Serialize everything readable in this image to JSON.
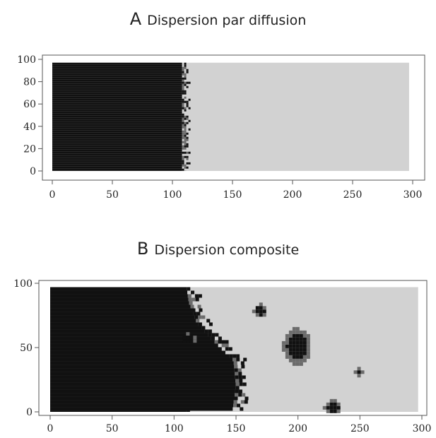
{
  "chart_data": [
    {
      "type": "heatmap",
      "panel_letter": "A",
      "title": "Dispersion par diffusion",
      "xlim": [
        0,
        300
      ],
      "ylim": [
        0,
        100
      ],
      "x_ticks": [
        "0",
        "50",
        "100",
        "150",
        "200",
        "250",
        "300"
      ],
      "y_ticks": [
        "0",
        "20",
        "40",
        "60",
        "80",
        "100"
      ],
      "x_tick_values": [
        0,
        50,
        100,
        150,
        200,
        250,
        300
      ],
      "y_tick_values": [
        0,
        20,
        40,
        60,
        80,
        100
      ],
      "legend": "none",
      "grid": false,
      "colors": {
        "occupied": "#111111",
        "front": "#6b6b6b",
        "empty": "#d2d2d2",
        "frame": "#555555"
      },
      "description_of_cells": {
        "grid_extent_x": [
          0,
          297
        ],
        "grid_extent_y": [
          0,
          97
        ],
        "dark_region_front_x": 108,
        "front_width": 5
      }
    },
    {
      "type": "heatmap",
      "panel_letter": "B",
      "title": "Dispersion composite",
      "xlim": [
        0,
        300
      ],
      "ylim": [
        0,
        100
      ],
      "x_ticks": [
        "0",
        "50",
        "100",
        "150",
        "200",
        "250",
        "300"
      ],
      "y_ticks": [
        "0",
        "50",
        "100"
      ],
      "x_tick_values": [
        0,
        50,
        100,
        150,
        200,
        250,
        300
      ],
      "y_tick_values": [
        0,
        50,
        100
      ],
      "legend": "none",
      "grid": false,
      "colors": {
        "occupied": "#111111",
        "front": "#6b6b6b",
        "empty": "#d2d2d2",
        "frame": "#555555"
      },
      "description_of_cells": {
        "grid_extent_x": [
          0,
          297
        ],
        "grid_extent_y": [
          0,
          97
        ],
        "dark_region_front_x_by_y": [
          [
            0,
            147
          ],
          [
            20,
            150
          ],
          [
            40,
            148
          ],
          [
            55,
            132
          ],
          [
            70,
            118
          ],
          [
            85,
            112
          ],
          [
            97,
            110
          ]
        ],
        "patches": [
          {
            "x": 198,
            "y": 52,
            "rx": 11,
            "ry": 14
          },
          {
            "x": 227,
            "y": 5,
            "rx": 7,
            "ry": 5
          },
          {
            "x": 168,
            "y": 80,
            "rx": 5,
            "ry": 5
          },
          {
            "x": 248,
            "y": 32,
            "rx": 3,
            "ry": 3
          },
          {
            "x": 110,
            "y": 58,
            "rx": 6,
            "ry": 4
          }
        ]
      }
    }
  ]
}
